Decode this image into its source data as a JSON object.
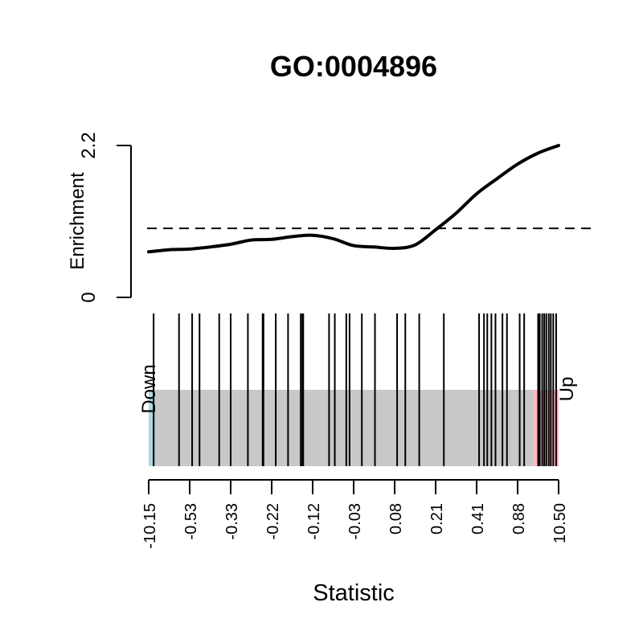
{
  "chart_data": {
    "type": "line",
    "title": "GO:0004896",
    "xlabel": "Statistic",
    "ylabel": "Enrichment",
    "y_ticks": [
      "0",
      "2.2"
    ],
    "ylim": [
      0,
      2.2
    ],
    "reference_line": 1.0,
    "x_ticks": [
      "-10.15",
      "-0.53",
      "-0.33",
      "-0.22",
      "-0.12",
      "-0.03",
      "0.08",
      "0.21",
      "0.41",
      "0.88",
      "10.50"
    ],
    "enrichment_curve": {
      "x": [
        0.0,
        0.05,
        0.1,
        0.15,
        0.2,
        0.25,
        0.3,
        0.35,
        0.4,
        0.45,
        0.5,
        0.55,
        0.6,
        0.65,
        0.7,
        0.75,
        0.8,
        0.85,
        0.9,
        0.95,
        1.0
      ],
      "y": [
        0.66,
        0.69,
        0.7,
        0.73,
        0.77,
        0.83,
        0.84,
        0.88,
        0.9,
        0.85,
        0.75,
        0.73,
        0.71,
        0.76,
        0.98,
        1.22,
        1.5,
        1.72,
        1.93,
        2.09,
        2.2
      ]
    },
    "barcode_ticks": [
      0.012,
      0.074,
      0.106,
      0.124,
      0.172,
      0.2,
      0.242,
      0.278,
      0.28,
      0.31,
      0.34,
      0.371,
      0.375,
      0.377,
      0.44,
      0.454,
      0.482,
      0.49,
      0.52,
      0.552,
      0.606,
      0.626,
      0.66,
      0.72,
      0.806,
      0.818,
      0.826,
      0.836,
      0.846,
      0.863,
      0.874,
      0.905,
      0.916,
      0.95,
      0.954,
      0.96,
      0.965,
      0.97,
      0.976,
      0.981,
      0.987,
      0.994
    ],
    "down_label": "Down",
    "up_label": "Up",
    "colors": {
      "down": "#add8e6",
      "up": "#ffb6c1",
      "background": "#c8c8c8",
      "line": "#000000"
    }
  }
}
